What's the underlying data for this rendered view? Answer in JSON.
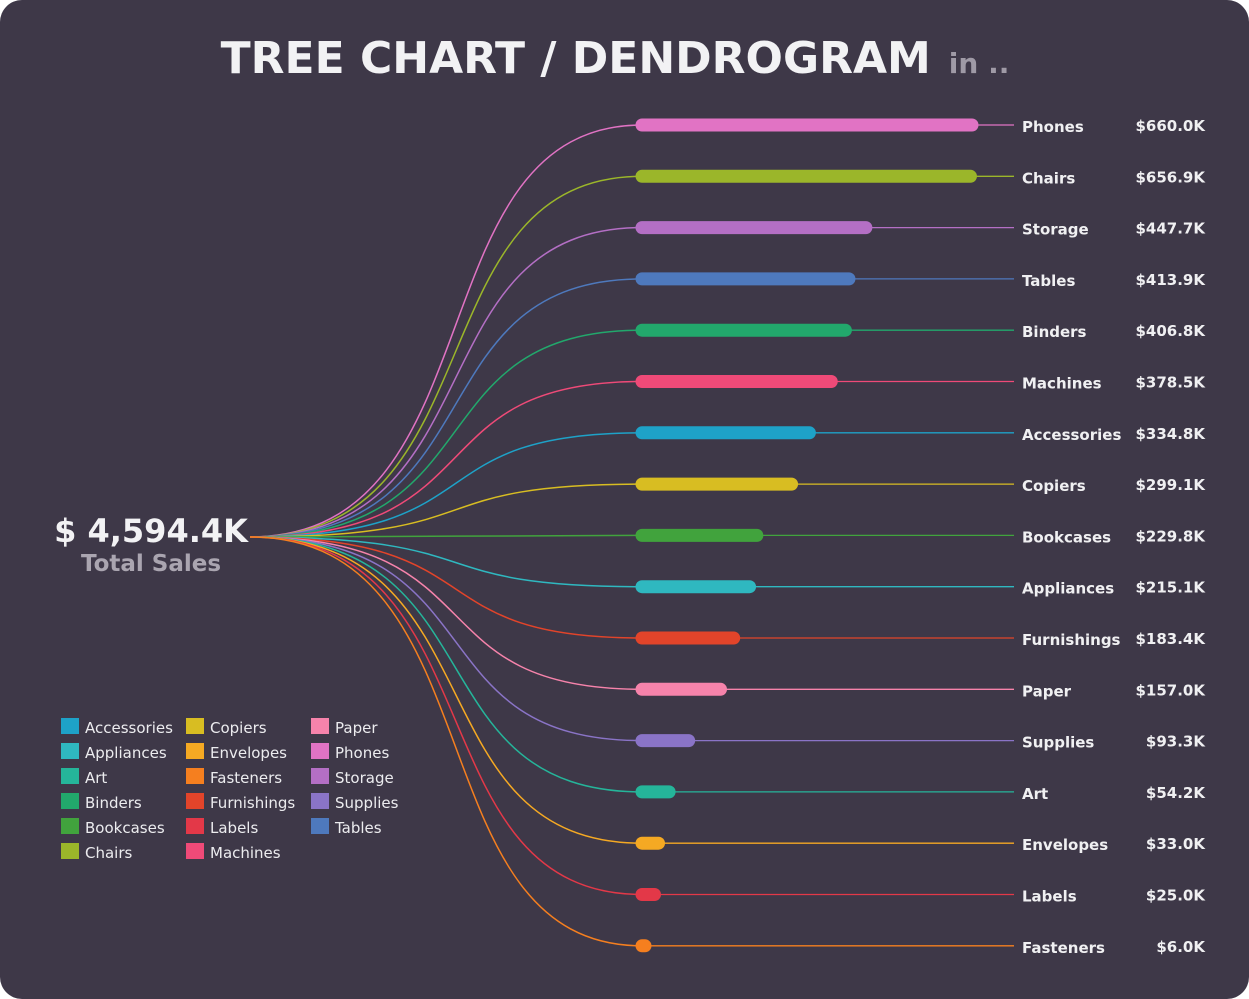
{
  "chart_data": {
    "type": "dendrogram",
    "title": "TREE CHART / DENDROGRAM",
    "subtitle": "in ..",
    "total": {
      "value_label": "$ 4,594.4K",
      "label": "Total Sales",
      "value": 4594.4
    },
    "unit": "K",
    "categories": [
      "Phones",
      "Chairs",
      "Storage",
      "Tables",
      "Binders",
      "Machines",
      "Accessories",
      "Copiers",
      "Bookcases",
      "Appliances",
      "Furnishings",
      "Paper",
      "Supplies",
      "Art",
      "Envelopes",
      "Labels",
      "Fasteners"
    ],
    "values": [
      660.0,
      656.9,
      447.7,
      413.9,
      406.8,
      378.5,
      334.8,
      299.1,
      229.8,
      215.1,
      183.4,
      157.0,
      93.3,
      54.2,
      33.0,
      25.0,
      6.0
    ],
    "value_labels": [
      "$660.0K",
      "$656.9K",
      "$447.7K",
      "$413.9K",
      "$406.8K",
      "$378.5K",
      "$334.8K",
      "$299.1K",
      "$229.8K",
      "$215.1K",
      "$183.4K",
      "$157.0K",
      "$93.3K",
      "$54.2K",
      "$33.0K",
      "$25.0K",
      "$6.0K"
    ],
    "colors": {
      "Accessories": "#1ea2c8",
      "Appliances": "#2fb8c0",
      "Art": "#25b59a",
      "Binders": "#22a86c",
      "Bookcases": "#41a33d",
      "Chairs": "#9bb62a",
      "Copiers": "#d8bd22",
      "Envelopes": "#f5a923",
      "Fasteners": "#f57f1f",
      "Furnishings": "#e2442a",
      "Labels": "#e33848",
      "Machines": "#ef4a78",
      "Paper": "#f683ab",
      "Phones": "#e173c4",
      "Storage": "#b46fc5",
      "Supplies": "#8a74c7",
      "Tables": "#4e79bd"
    },
    "legend": {
      "placement": "bottom-left",
      "columns": [
        [
          "Accessories",
          "Appliances",
          "Art",
          "Binders",
          "Bookcases",
          "Chairs"
        ],
        [
          "Copiers",
          "Envelopes",
          "Fasteners",
          "Furnishings",
          "Labels",
          "Machines"
        ],
        [
          "Paper",
          "Phones",
          "Storage",
          "Supplies",
          "Tables"
        ]
      ]
    },
    "background": "#3e3848"
  }
}
